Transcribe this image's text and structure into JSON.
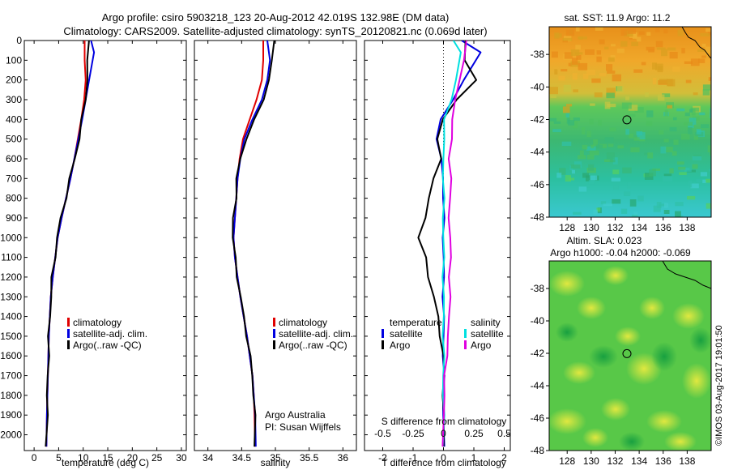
{
  "header": {
    "title_line1": "Argo profile: csiro 5903218_123 20-Aug-2012 42.019S 132.98E (DM data)",
    "title_line2": "Climatology: CARS2009. Satellite-adjusted climatology: synTS_20120821.nc (0.069d later)"
  },
  "colors": {
    "climatology": "#e00000",
    "satellite": "#0000e0",
    "argo": "#000000",
    "s_satellite": "#00e0e0",
    "s_argo": "#e000e0"
  },
  "depth_ticks": [
    "0",
    "100",
    "200",
    "300",
    "400",
    "500",
    "600",
    "700",
    "800",
    "900",
    "1000",
    "1100",
    "1200",
    "1300",
    "1400",
    "1500",
    "1600",
    "1700",
    "1800",
    "1900",
    "2000"
  ],
  "chart_data": [
    {
      "type": "line",
      "xlabel": "temperature (deg C)",
      "xlim": [
        -2,
        31
      ],
      "ylim": [
        2080,
        0
      ],
      "xticks": [
        "0",
        "5",
        "10",
        "15",
        "20",
        "25",
        "30"
      ],
      "legend": [
        "climatology",
        "satellite-adj. clim.",
        "Argo(..raw -QC)"
      ],
      "series": [
        {
          "name": "climatology",
          "color": "#e00000",
          "x": [
            10.3,
            10.3,
            10.5,
            10.2,
            9.6,
            8.9,
            8.2,
            7.4,
            6.5,
            5.6,
            4.8,
            4.3,
            3.8,
            3.4,
            3.2,
            3.0,
            2.9,
            2.8,
            2.7,
            2.6,
            2.5
          ],
          "y": [
            0,
            100,
            200,
            300,
            400,
            500,
            600,
            700,
            800,
            900,
            1000,
            1100,
            1200,
            1300,
            1400,
            1500,
            1600,
            1700,
            1800,
            1900,
            2060
          ]
        },
        {
          "name": "satellite-adj. clim.",
          "color": "#0000e0",
          "x": [
            11.6,
            12.2,
            11.2,
            10.5,
            9.8,
            9.0,
            8.2,
            7.4,
            6.5,
            5.6,
            4.8,
            4.3,
            3.8,
            3.4,
            3.2,
            3.0,
            2.9,
            2.8,
            2.7,
            2.6,
            2.5
          ],
          "y": [
            0,
            60,
            200,
            300,
            400,
            500,
            600,
            700,
            800,
            900,
            1000,
            1100,
            1200,
            1300,
            1400,
            1500,
            1600,
            1700,
            1800,
            1900,
            2060
          ]
        },
        {
          "name": "Argo(..raw -QC)",
          "color": "#000000",
          "x": [
            11.0,
            11.0,
            10.8,
            10.4,
            9.8,
            9.1,
            8.3,
            7.3,
            6.4,
            5.5,
            4.7,
            4.2,
            3.7,
            3.4,
            3.2,
            3.0,
            2.9,
            2.8,
            2.7,
            2.6,
            2.5
          ],
          "y": [
            0,
            100,
            200,
            300,
            400,
            500,
            600,
            700,
            800,
            900,
            1000,
            1100,
            1200,
            1300,
            1400,
            1500,
            1600,
            1700,
            1800,
            1900,
            2060
          ]
        }
      ]
    },
    {
      "type": "line",
      "xlabel": "salinity",
      "xlim": [
        33.8,
        36.2
      ],
      "ylim": [
        2080,
        0
      ],
      "xticks": [
        "34",
        "34.5",
        "35",
        "35.5",
        "36"
      ],
      "legend": [
        "climatology",
        "satellite-adj. clim.",
        "Argo(..raw -QC)"
      ],
      "annotations": [
        "Argo Australia",
        "PI: Susan Wijffels"
      ],
      "series": [
        {
          "name": "climatology",
          "color": "#e00000",
          "x": [
            34.82,
            34.82,
            34.8,
            34.72,
            34.62,
            34.52,
            34.47,
            34.44,
            34.42,
            34.4,
            34.38,
            34.4,
            34.44,
            34.48,
            34.53,
            34.58,
            34.62,
            34.66,
            34.68,
            34.69,
            34.7
          ],
          "y": [
            0,
            100,
            200,
            300,
            400,
            500,
            600,
            700,
            800,
            900,
            1000,
            1100,
            1200,
            1300,
            1400,
            1500,
            1600,
            1700,
            1800,
            1900,
            2060
          ]
        },
        {
          "name": "satellite-adj. clim.",
          "color": "#0000e0",
          "x": [
            34.88,
            34.92,
            34.88,
            34.8,
            34.66,
            34.54,
            34.48,
            34.44,
            34.42,
            34.4,
            34.38,
            34.4,
            34.44,
            34.48,
            34.53,
            34.58,
            34.62,
            34.66,
            34.68,
            34.7,
            34.71
          ],
          "y": [
            0,
            100,
            200,
            300,
            400,
            500,
            600,
            700,
            800,
            900,
            1000,
            1100,
            1200,
            1300,
            1400,
            1500,
            1600,
            1700,
            1800,
            1900,
            2060
          ]
        },
        {
          "name": "Argo(..raw -QC)",
          "color": "#000000",
          "x": [
            34.97,
            34.96,
            34.9,
            34.82,
            34.7,
            34.56,
            34.48,
            34.43,
            34.41,
            34.38,
            34.37,
            34.4,
            34.44,
            34.48,
            34.53,
            34.58,
            34.62,
            34.66,
            34.68,
            34.69,
            34.7
          ],
          "y": [
            0,
            100,
            200,
            300,
            400,
            500,
            600,
            700,
            800,
            900,
            1000,
            1100,
            1200,
            1300,
            1400,
            1500,
            1600,
            1700,
            1800,
            1900,
            2060
          ]
        }
      ]
    },
    {
      "type": "line",
      "xlabel": "T difference from climatology",
      "x2label": "S difference from climatology",
      "xlim": [
        -2.6,
        2.2
      ],
      "ylim": [
        2080,
        0
      ],
      "xticks": [
        "-2",
        "-1",
        "0",
        "1",
        "2"
      ],
      "x2ticks": [
        "-0.5",
        "-0.25",
        "0",
        "0.25",
        "0.5"
      ],
      "legend_titles": [
        "temperature",
        "salinity"
      ],
      "legend": [
        "satellite",
        "Argo",
        "satellite",
        "Argo"
      ],
      "series": [
        {
          "name": "satellite",
          "color": "#0000e0",
          "x": [
            0.6,
            1.2,
            0.7,
            0.3,
            -0.1,
            -0.2,
            -0.1,
            0,
            0,
            0,
            0,
            0,
            0,
            0,
            0,
            0,
            0,
            0,
            0,
            0,
            0
          ],
          "y": [
            0,
            60,
            200,
            300,
            400,
            500,
            600,
            700,
            800,
            900,
            1000,
            1100,
            1200,
            1300,
            1400,
            1500,
            1600,
            1700,
            1800,
            1900,
            2060
          ]
        },
        {
          "name": "Argo",
          "color": "#000000",
          "x": [
            0.7,
            0.7,
            1.1,
            0.4,
            0,
            -0.2,
            -0.1,
            -0.3,
            -0.5,
            -0.6,
            -0.8,
            -0.6,
            -0.5,
            -0.3,
            -0.2,
            -0.1,
            0,
            0,
            0,
            0,
            0
          ],
          "y": [
            0,
            100,
            200,
            300,
            400,
            500,
            600,
            700,
            800,
            900,
            1000,
            1100,
            1200,
            1300,
            1400,
            1500,
            1600,
            1700,
            1800,
            1900,
            2060
          ]
        },
        {
          "name": "satellite",
          "color": "#00e0e0",
          "x": [
            0.3,
            0.6,
            0.4,
            0.25,
            0.05,
            0,
            0,
            0,
            0,
            0,
            0,
            0,
            0,
            0,
            0,
            0,
            0,
            0,
            0,
            0,
            0
          ],
          "y": [
            0,
            60,
            200,
            300,
            400,
            500,
            600,
            700,
            800,
            900,
            1000,
            1100,
            1200,
            1300,
            1400,
            1500,
            1600,
            1700,
            1800,
            1900,
            2060
          ]
        },
        {
          "name": "Argo",
          "color": "#e000e0",
          "x": [
            0.75,
            0.7,
            0.5,
            0.4,
            0.3,
            0.25,
            0.2,
            0.25,
            0.2,
            0.2,
            0.2,
            0.25,
            0.2,
            0.2,
            0.2,
            0.15,
            0.1,
            0.05,
            0.02,
            0,
            0
          ],
          "y": [
            0,
            100,
            200,
            300,
            400,
            500,
            600,
            700,
            800,
            900,
            1000,
            1100,
            1200,
            1300,
            1400,
            1500,
            1600,
            1700,
            1800,
            1900,
            2060
          ]
        }
      ]
    },
    {
      "type": "heatmap",
      "title": "sat. SST: 11.9 Argo: 11.2",
      "xticks": [
        "128",
        "130",
        "132",
        "134",
        "136",
        "138"
      ],
      "yticks": [
        "-38",
        "-40",
        "-42",
        "-44",
        "-46",
        "-48"
      ],
      "xlim": [
        126.5,
        140
      ],
      "ylim": [
        -48,
        -36.3
      ],
      "marker": {
        "lon": 132.98,
        "lat": -42.019
      }
    },
    {
      "type": "heatmap",
      "title": "Altim. SLA: 0.023",
      "subtitle": "Argo h1000: -0.04 h2000: -0.069",
      "xticks": [
        "128",
        "130",
        "132",
        "134",
        "136",
        "138"
      ],
      "yticks": [
        "-38",
        "-40",
        "-42",
        "-44",
        "-46",
        "-48"
      ],
      "xlim": [
        126.5,
        140
      ],
      "ylim": [
        -48,
        -36.3
      ],
      "marker": {
        "lon": 132.98,
        "lat": -42.019
      }
    }
  ],
  "footer": {
    "credit": "©IMOS 03-Aug-2017 19:01:50"
  }
}
